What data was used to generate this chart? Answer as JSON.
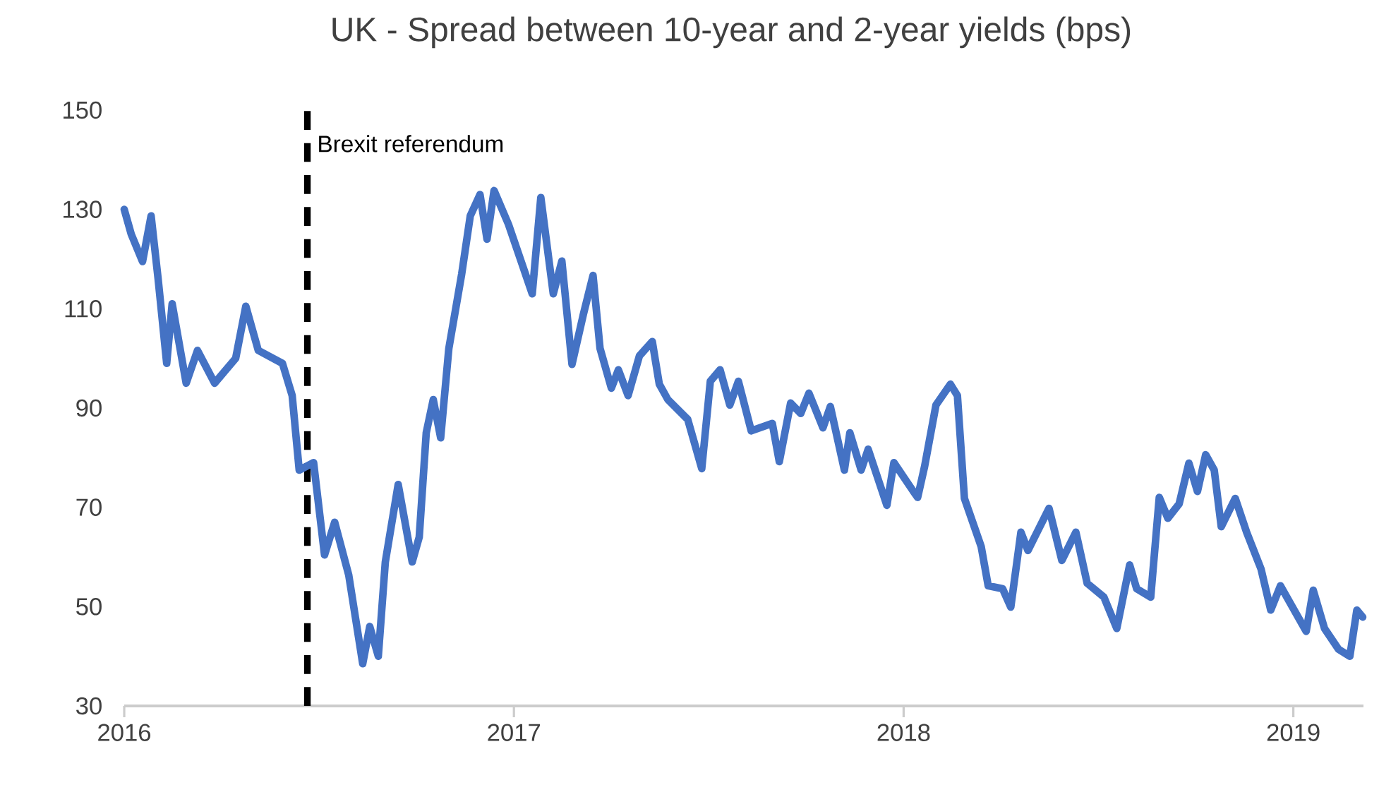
{
  "chart_data": {
    "type": "line",
    "title": "UK - Spread between 10-year and 2-year yields (bps)",
    "xlim": [
      2016,
      2019.18
    ],
    "xticks": [
      2016,
      2017,
      2018,
      2019
    ],
    "ylim": [
      30,
      150
    ],
    "yticks": [
      30,
      50,
      70,
      90,
      110,
      130,
      150
    ],
    "line_style": "solid",
    "ref_lines": [
      {
        "axis": "x",
        "value": 2016.47,
        "label": "Brexit referendum",
        "color": "#000000",
        "line_style": "dashed"
      }
    ],
    "series": [
      {
        "color": "#4472c4",
        "x": [
          2016.0,
          2016.018,
          2016.047,
          2016.069,
          2016.087,
          2016.109,
          2016.123,
          2016.159,
          2016.188,
          2016.232,
          2016.286,
          2016.312,
          2016.344,
          2016.406,
          2016.431,
          2016.449,
          2016.486,
          2016.514,
          2016.54,
          2016.576,
          2016.612,
          2016.63,
          2016.652,
          2016.67,
          2016.703,
          2016.739,
          2016.757,
          2016.775,
          2016.793,
          2016.812,
          2016.833,
          2016.866,
          2016.888,
          2016.913,
          2016.931,
          2016.949,
          2016.986,
          2017.047,
          2017.069,
          2017.101,
          2017.123,
          2017.149,
          2017.178,
          2017.203,
          2017.221,
          2017.25,
          2017.268,
          2017.293,
          2017.322,
          2017.355,
          2017.373,
          2017.395,
          2017.446,
          2017.482,
          2017.504,
          2017.529,
          2017.554,
          2017.576,
          2017.609,
          2017.663,
          2017.681,
          2017.71,
          2017.736,
          2017.757,
          2017.793,
          2017.812,
          2017.848,
          2017.862,
          2017.891,
          2017.909,
          2017.957,
          2017.975,
          2018.025,
          2018.036,
          2018.054,
          2018.083,
          2018.12,
          2018.138,
          2018.156,
          2018.199,
          2018.217,
          2018.254,
          2018.275,
          2018.301,
          2018.319,
          2018.373,
          2018.406,
          2018.442,
          2018.471,
          2018.514,
          2018.547,
          2018.58,
          2018.598,
          2018.634,
          2018.656,
          2018.678,
          2018.707,
          2018.732,
          2018.754,
          2018.775,
          2018.797,
          2018.815,
          2018.851,
          2018.88,
          2018.917,
          2018.942,
          2018.967,
          2019.033,
          2019.051,
          2019.08,
          2019.116,
          2019.145,
          2019.163,
          2019.178
        ],
        "values": [
          130,
          125,
          119.5,
          128.7,
          116,
          99,
          111,
          95,
          101.6,
          95,
          100,
          110.5,
          101.6,
          99,
          92.5,
          77.5,
          79,
          60.4,
          67,
          56.4,
          38.5,
          46,
          40,
          59,
          74.6,
          59,
          64,
          85,
          91.7,
          84,
          102,
          117,
          128.7,
          133,
          124,
          133.8,
          127,
          113,
          132.4,
          113,
          119.6,
          98.8,
          108.8,
          116.7,
          102,
          94,
          97.7,
          92.5,
          100.5,
          103.4,
          94.8,
          91.7,
          87.7,
          77.8,
          95.4,
          97.7,
          90.6,
          95.4,
          85.4,
          86.9,
          79.2,
          91,
          88.9,
          93,
          86,
          90.3,
          77.5,
          85,
          77.5,
          81.7,
          70.4,
          79,
          73.2,
          72,
          78.3,
          90.6,
          94.8,
          92.5,
          71.8,
          62.1,
          54.2,
          53.6,
          49.9,
          65,
          61.3,
          69.8,
          59.3,
          65,
          54.7,
          51.9,
          45.6,
          58.4,
          53.6,
          51.9,
          72,
          67.8,
          70.7,
          78.9,
          73.2,
          80.6,
          77.5,
          66.1,
          71.8,
          65,
          57.6,
          49.3,
          54.2,
          45,
          53.3,
          45.6,
          41.4,
          40,
          49.3,
          47.9
        ]
      }
    ]
  }
}
